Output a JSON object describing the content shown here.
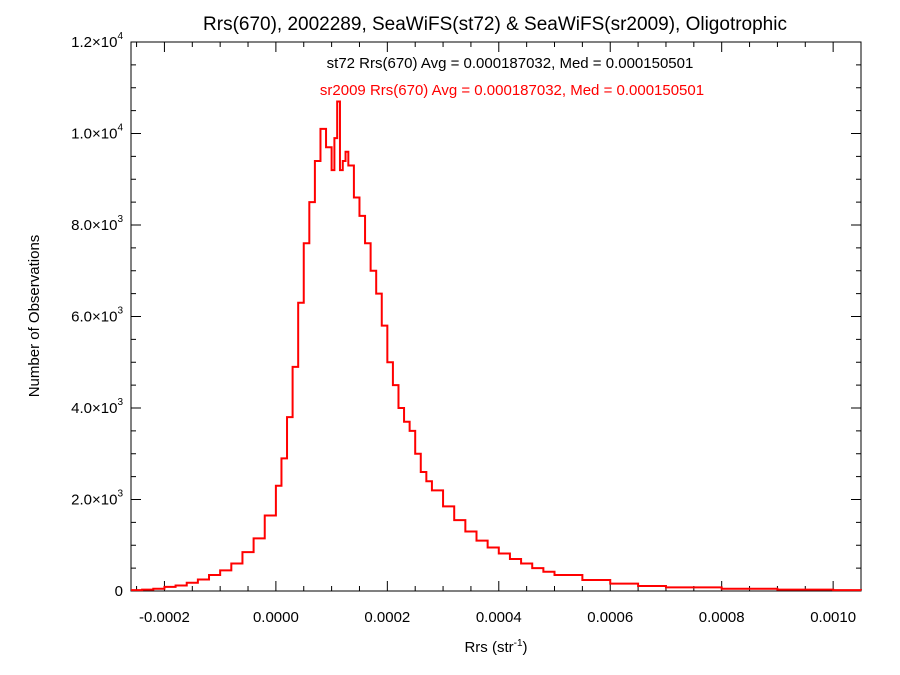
{
  "chart_data": {
    "type": "line",
    "title": "Rrs(670), 2002289, SeaWiFS(st72) & SeaWiFS(sr2009), Oligotrophic",
    "xlabel": "Rrs (str",
    "xlabel_sup": "-1",
    "xlabel_suffix": ")",
    "ylabel": "Number of Observations",
    "xlim": [
      -0.00026,
      0.00105
    ],
    "ylim": [
      0,
      12000
    ],
    "x_ticks": [
      {
        "value": -0.0002,
        "label": "-0.0002"
      },
      {
        "value": 0.0,
        "label": "0.0000"
      },
      {
        "value": 0.0002,
        "label": "0.0002"
      },
      {
        "value": 0.0004,
        "label": "0.0004"
      },
      {
        "value": 0.0006,
        "label": "0.0006"
      },
      {
        "value": 0.0008,
        "label": "0.0008"
      },
      {
        "value": 0.001,
        "label": "0.0010"
      }
    ],
    "y_ticks": [
      {
        "value": 0,
        "mant": "0",
        "exp": ""
      },
      {
        "value": 2000,
        "mant": "2.0×10",
        "exp": "3"
      },
      {
        "value": 4000,
        "mant": "4.0×10",
        "exp": "3"
      },
      {
        "value": 6000,
        "mant": "6.0×10",
        "exp": "3"
      },
      {
        "value": 8000,
        "mant": "8.0×10",
        "exp": "3"
      },
      {
        "value": 10000,
        "mant": "1.0×10",
        "exp": "4"
      },
      {
        "value": 12000,
        "mant": "1.2×10",
        "exp": "4"
      }
    ],
    "grid": false,
    "annotations": [
      {
        "text": "st72 Rrs(670) Avg = 0.000187032, Med = 0.000150501",
        "color": "#000000"
      },
      {
        "text": "sr2009 Rrs(670) Avg = 0.000187032, Med = 0.000150501",
        "color": "#ff0000"
      }
    ],
    "series": [
      {
        "color": "#ff0000",
        "style": "histogram-step",
        "x": [
          -0.00026,
          -0.00024,
          -0.00022,
          -0.0002,
          -0.00018,
          -0.00016,
          -0.00014,
          -0.00012,
          -0.0001,
          -8e-05,
          -6e-05,
          -4e-05,
          -2e-05,
          0.0,
          1e-05,
          2e-05,
          3e-05,
          4e-05,
          5e-05,
          6e-05,
          7e-05,
          8e-05,
          9e-05,
          0.0001,
          0.000105,
          0.00011,
          0.000115,
          0.00012,
          0.000125,
          0.00013,
          0.00014,
          0.00015,
          0.00016,
          0.00017,
          0.00018,
          0.00019,
          0.0002,
          0.00021,
          0.00022,
          0.00023,
          0.00024,
          0.00025,
          0.00026,
          0.00027,
          0.00028,
          0.0003,
          0.00032,
          0.00034,
          0.00036,
          0.00038,
          0.0004,
          0.00042,
          0.00044,
          0.00046,
          0.00048,
          0.0005,
          0.00055,
          0.0006,
          0.00065,
          0.0007,
          0.0008,
          0.0009,
          0.001,
          0.00105
        ],
        "values": [
          20,
          30,
          50,
          90,
          120,
          180,
          250,
          350,
          450,
          600,
          850,
          1150,
          1650,
          2300,
          2900,
          3800,
          4900,
          6300,
          7600,
          8500,
          9400,
          10100,
          9700,
          9200,
          9900,
          10700,
          9200,
          9400,
          9600,
          9300,
          8600,
          8200,
          7600,
          7000,
          6500,
          5800,
          5000,
          4500,
          4000,
          3700,
          3500,
          3000,
          2600,
          2400,
          2200,
          1850,
          1550,
          1300,
          1100,
          950,
          820,
          700,
          600,
          500,
          420,
          350,
          240,
          160,
          110,
          80,
          50,
          30,
          20,
          15
        ]
      }
    ]
  }
}
